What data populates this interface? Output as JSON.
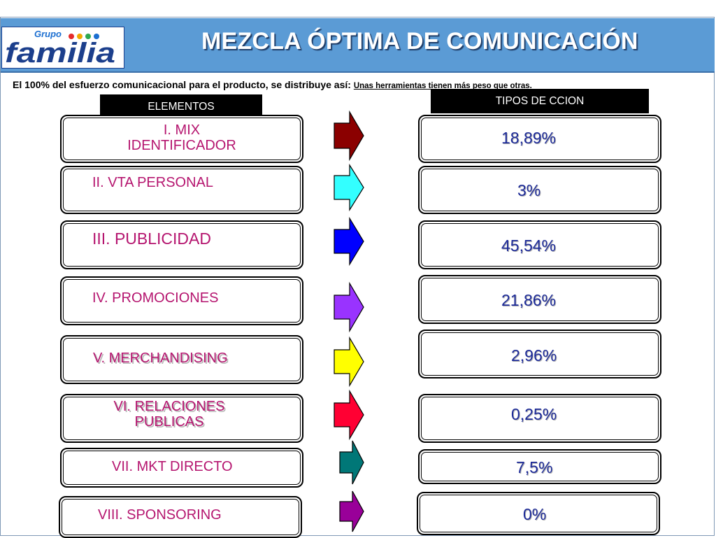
{
  "header": {
    "title": "MEZCLA ÓPTIMA DE COMUNICACIÓN",
    "logo": {
      "top_text": "Grupo",
      "brand_text": "familia"
    }
  },
  "intro": {
    "main": "El 100% del esfuerzo comunicacional para el producto, se distribuye así:",
    "note": "Unas herramientas tienen más peso que otras."
  },
  "columns": {
    "left_header": "ELEMENTOS",
    "right_header": "TIPOS  DE CCION"
  },
  "rows": [
    {
      "element": "I. MIX",
      "element_line2": "IDENTIFICADOR",
      "value": "18,89%",
      "arrow_color": "#8b0000",
      "arrow_icon": "right-arrow-icon"
    },
    {
      "element": "II. VTA PERSONAL",
      "value": "3%",
      "arrow_color": "#33ffff",
      "arrow_icon": "right-arrow-icon"
    },
    {
      "element": "III. PUBLICIDAD",
      "value": "45,54%",
      "arrow_color": "#0000ff",
      "arrow_icon": "right-arrow-icon"
    },
    {
      "element": "IV. PROMOCIONES",
      "value": "21,86%",
      "arrow_color": "#9933ff",
      "arrow_icon": "right-arrow-icon"
    },
    {
      "element": "V. MERCHANDISING",
      "value": "2,96%",
      "arrow_color": "#ffff00",
      "arrow_icon": "right-arrow-icon"
    },
    {
      "element": "VI. RELACIONES",
      "element_line2": "PUBLICAS",
      "value": "0,25%",
      "arrow_color": "#ff0033",
      "arrow_icon": "right-arrow-icon"
    },
    {
      "element": "VII. MKT DIRECTO",
      "value": "7,5%",
      "arrow_color": "#007777",
      "arrow_icon": "right-arrow-icon"
    },
    {
      "element": "VIII. SPONSORING",
      "value": "0%",
      "arrow_color": "#990099",
      "arrow_icon": "right-arrow-icon"
    }
  ],
  "colors": {
    "header_bar": "#5b9bd5",
    "element_text": "#b5156f",
    "value_text": "#1c2a99"
  }
}
